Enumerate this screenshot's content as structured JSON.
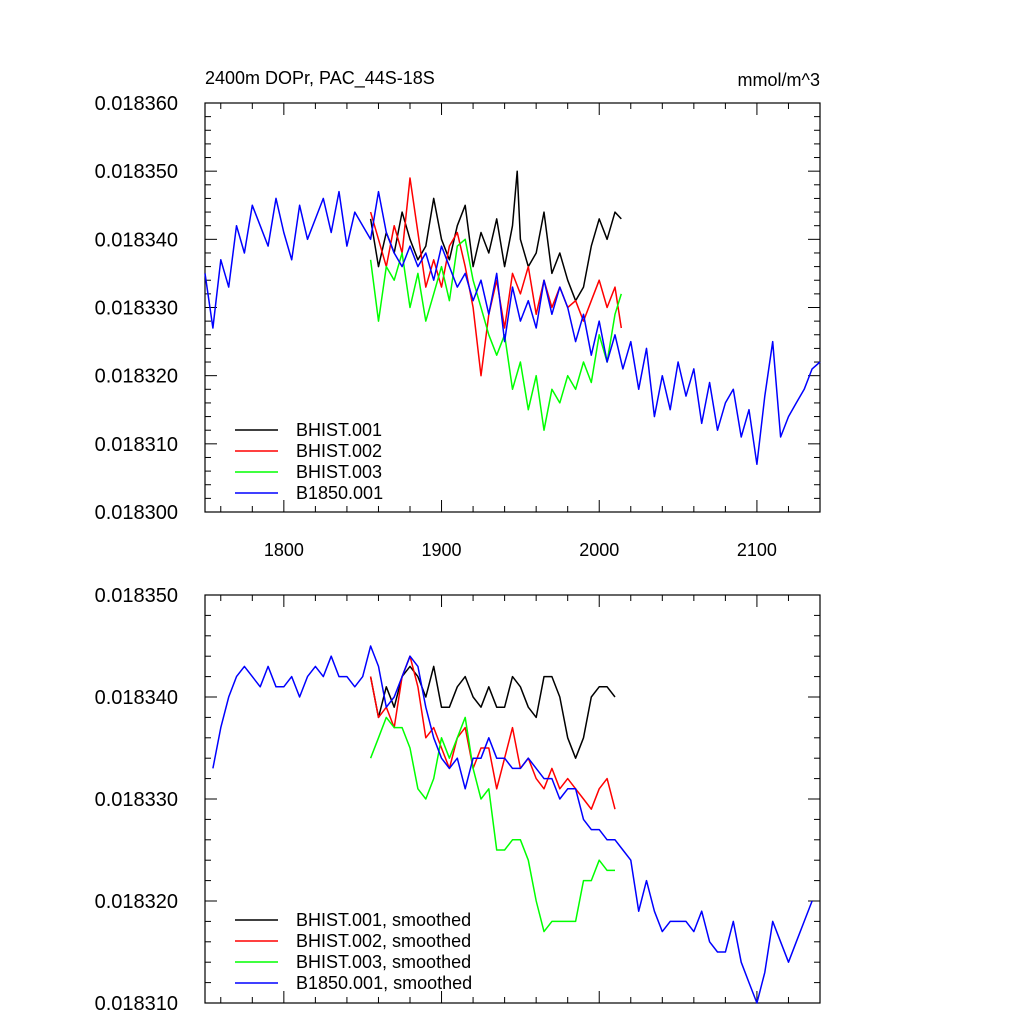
{
  "chart_data": [
    {
      "type": "line",
      "title": "2400m DOPr, PAC_44S-18S",
      "units": "mmol/m^3",
      "xlim": [
        1750,
        2140
      ],
      "ylim": [
        0.0183,
        0.01836
      ],
      "xticks": [
        1800,
        1900,
        2000,
        2100
      ],
      "xtick_labels": [
        "1800",
        "1900",
        "2000",
        "2100"
      ],
      "yticks": [
        0.0183,
        0.01831,
        0.01832,
        0.01833,
        0.01834,
        0.01835,
        0.01836
      ],
      "ytick_labels": [
        "0.018300",
        "0.018310",
        "0.018320",
        "0.018330",
        "0.018340",
        "0.018350",
        "0.018360"
      ],
      "legend_position": "bottom-left",
      "series": [
        {
          "name": "BHIST.001",
          "color": "#000000",
          "x": [
            1855,
            1860,
            1865,
            1870,
            1875,
            1880,
            1885,
            1890,
            1895,
            1900,
            1905,
            1910,
            1915,
            1920,
            1925,
            1930,
            1935,
            1940,
            1945,
            1948,
            1950,
            1955,
            1960,
            1965,
            1970,
            1975,
            1980,
            1985,
            1990,
            1995,
            2000,
            2005,
            2010,
            2014
          ],
          "y": [
            0.018343,
            0.018336,
            0.018341,
            0.018338,
            0.018344,
            0.01834,
            0.018337,
            0.018339,
            0.018346,
            0.01834,
            0.018337,
            0.018342,
            0.018345,
            0.018336,
            0.018341,
            0.018338,
            0.018343,
            0.018336,
            0.018342,
            0.01835,
            0.01834,
            0.018336,
            0.018338,
            0.018344,
            0.018335,
            0.018338,
            0.018334,
            0.018331,
            0.018333,
            0.018339,
            0.018343,
            0.01834,
            0.018344,
            0.018343
          ]
        },
        {
          "name": "BHIST.002",
          "color": "#ff0000",
          "x": [
            1855,
            1860,
            1865,
            1870,
            1875,
            1880,
            1885,
            1890,
            1895,
            1900,
            1905,
            1910,
            1915,
            1920,
            1925,
            1930,
            1935,
            1940,
            1945,
            1950,
            1955,
            1960,
            1965,
            1970,
            1975,
            1980,
            1985,
            1990,
            1995,
            2000,
            2005,
            2010,
            2014
          ],
          "y": [
            0.018344,
            0.01834,
            0.018336,
            0.018342,
            0.018338,
            0.018349,
            0.018341,
            0.018333,
            0.018337,
            0.018333,
            0.018339,
            0.018341,
            0.018336,
            0.01833,
            0.01832,
            0.018329,
            0.018334,
            0.018327,
            0.018335,
            0.018332,
            0.018336,
            0.018329,
            0.018334,
            0.01833,
            0.018333,
            0.01833,
            0.018331,
            0.018328,
            0.018331,
            0.018334,
            0.01833,
            0.018333,
            0.018327
          ]
        },
        {
          "name": "BHIST.003",
          "color": "#00ff00",
          "x": [
            1855,
            1860,
            1865,
            1870,
            1875,
            1880,
            1885,
            1890,
            1895,
            1900,
            1905,
            1910,
            1915,
            1920,
            1925,
            1930,
            1935,
            1940,
            1945,
            1950,
            1955,
            1960,
            1965,
            1970,
            1975,
            1980,
            1985,
            1990,
            1995,
            2000,
            2005,
            2010,
            2014
          ],
          "y": [
            0.018337,
            0.018328,
            0.018336,
            0.018334,
            0.018338,
            0.01833,
            0.018335,
            0.018328,
            0.018332,
            0.018336,
            0.018331,
            0.018339,
            0.01834,
            0.018334,
            0.01833,
            0.018326,
            0.018323,
            0.018326,
            0.018318,
            0.018322,
            0.018315,
            0.01832,
            0.018312,
            0.018318,
            0.018316,
            0.01832,
            0.018318,
            0.018322,
            0.018319,
            0.018326,
            0.018322,
            0.018329,
            0.018332
          ]
        },
        {
          "name": "B1850.001",
          "color": "#0000ff",
          "x": [
            1750,
            1755,
            1760,
            1765,
            1770,
            1775,
            1780,
            1785,
            1790,
            1795,
            1800,
            1805,
            1810,
            1815,
            1820,
            1825,
            1830,
            1835,
            1840,
            1845,
            1850,
            1855,
            1860,
            1865,
            1870,
            1875,
            1880,
            1885,
            1890,
            1895,
            1900,
            1905,
            1910,
            1915,
            1920,
            1925,
            1930,
            1935,
            1940,
            1945,
            1950,
            1955,
            1960,
            1965,
            1970,
            1975,
            1980,
            1985,
            1990,
            1995,
            2000,
            2005,
            2010,
            2015,
            2020,
            2025,
            2030,
            2035,
            2040,
            2045,
            2050,
            2055,
            2060,
            2065,
            2070,
            2075,
            2080,
            2085,
            2090,
            2095,
            2100,
            2105,
            2110,
            2115,
            2120,
            2125,
            2130,
            2135,
            2140
          ],
          "y": [
            0.018335,
            0.018327,
            0.018337,
            0.018333,
            0.018342,
            0.018338,
            0.018345,
            0.018342,
            0.018339,
            0.018346,
            0.018341,
            0.018337,
            0.018345,
            0.01834,
            0.018343,
            0.018346,
            0.018341,
            0.018347,
            0.018339,
            0.018344,
            0.018342,
            0.01834,
            0.018347,
            0.018341,
            0.018338,
            0.018336,
            0.018339,
            0.018336,
            0.018338,
            0.018334,
            0.018339,
            0.018336,
            0.018333,
            0.018335,
            0.018331,
            0.018334,
            0.018329,
            0.018335,
            0.018325,
            0.018333,
            0.018328,
            0.018331,
            0.018327,
            0.018334,
            0.018329,
            0.018333,
            0.01833,
            0.018325,
            0.018329,
            0.018323,
            0.018328,
            0.018322,
            0.018326,
            0.018321,
            0.018325,
            0.018318,
            0.018324,
            0.018314,
            0.01832,
            0.018315,
            0.018322,
            0.018317,
            0.018321,
            0.018313,
            0.018319,
            0.018312,
            0.018316,
            0.018318,
            0.018311,
            0.018315,
            0.018307,
            0.018317,
            0.018325,
            0.018311,
            0.018314,
            0.018316,
            0.018318,
            0.018321,
            0.018322
          ]
        }
      ]
    },
    {
      "type": "line",
      "xlim": [
        1750,
        2140
      ],
      "ylim": [
        0.01831,
        0.01835
      ],
      "xticks": [
        1800,
        1900,
        2000,
        2100
      ],
      "yticks": [
        0.01831,
        0.01832,
        0.01833,
        0.01834,
        0.01835
      ],
      "ytick_labels": [
        "0.018310",
        "0.018320",
        "0.018330",
        "0.018340",
        "0.018350"
      ],
      "legend_position": "bottom-left",
      "series": [
        {
          "name": "BHIST.001, smoothed",
          "color": "#000000",
          "x": [
            1855,
            1860,
            1865,
            1870,
            1875,
            1880,
            1885,
            1890,
            1895,
            1900,
            1905,
            1910,
            1915,
            1920,
            1925,
            1930,
            1935,
            1940,
            1945,
            1950,
            1955,
            1960,
            1965,
            1970,
            1975,
            1980,
            1985,
            1990,
            1995,
            2000,
            2005,
            2010
          ],
          "y": [
            0.018342,
            0.018338,
            0.018341,
            0.018339,
            0.018342,
            0.018343,
            0.018342,
            0.01834,
            0.018343,
            0.018339,
            0.018339,
            0.018341,
            0.018342,
            0.01834,
            0.018339,
            0.018341,
            0.018339,
            0.018339,
            0.018342,
            0.018341,
            0.018339,
            0.018338,
            0.018342,
            0.018342,
            0.01834,
            0.018336,
            0.018334,
            0.018336,
            0.01834,
            0.018341,
            0.018341,
            0.01834
          ]
        },
        {
          "name": "BHIST.002, smoothed",
          "color": "#ff0000",
          "x": [
            1855,
            1860,
            1865,
            1870,
            1875,
            1880,
            1885,
            1890,
            1895,
            1900,
            1905,
            1910,
            1915,
            1920,
            1925,
            1930,
            1935,
            1940,
            1945,
            1950,
            1955,
            1960,
            1965,
            1970,
            1975,
            1980,
            1985,
            1990,
            1995,
            2000,
            2005,
            2010
          ],
          "y": [
            0.018342,
            0.018338,
            0.018339,
            0.018337,
            0.018342,
            0.018344,
            0.018341,
            0.018336,
            0.018337,
            0.018335,
            0.018333,
            0.018336,
            0.018337,
            0.018333,
            0.018335,
            0.018335,
            0.018331,
            0.018334,
            0.018337,
            0.018333,
            0.018334,
            0.018332,
            0.018331,
            0.018333,
            0.018331,
            0.018332,
            0.018331,
            0.01833,
            0.018329,
            0.018331,
            0.018332,
            0.018329
          ]
        },
        {
          "name": "BHIST.003, smoothed",
          "color": "#00ff00",
          "x": [
            1855,
            1860,
            1865,
            1870,
            1875,
            1880,
            1885,
            1890,
            1895,
            1900,
            1905,
            1910,
            1915,
            1920,
            1925,
            1930,
            1935,
            1940,
            1945,
            1950,
            1955,
            1960,
            1965,
            1970,
            1975,
            1980,
            1985,
            1990,
            1995,
            2000,
            2005,
            2010
          ],
          "y": [
            0.018334,
            0.018336,
            0.018338,
            0.018337,
            0.018337,
            0.018335,
            0.018331,
            0.01833,
            0.018332,
            0.018336,
            0.018334,
            0.018336,
            0.018338,
            0.018333,
            0.01833,
            0.018331,
            0.018325,
            0.018325,
            0.018326,
            0.018326,
            0.018324,
            0.01832,
            0.018317,
            0.018318,
            0.018318,
            0.018318,
            0.018318,
            0.018322,
            0.018322,
            0.018324,
            0.018323,
            0.018323
          ]
        },
        {
          "name": "B1850.001, smoothed",
          "color": "#0000ff",
          "x": [
            1755,
            1760,
            1765,
            1770,
            1775,
            1780,
            1785,
            1790,
            1795,
            1800,
            1805,
            1810,
            1815,
            1820,
            1825,
            1830,
            1835,
            1840,
            1845,
            1850,
            1855,
            1860,
            1865,
            1870,
            1875,
            1880,
            1885,
            1890,
            1895,
            1900,
            1905,
            1910,
            1915,
            1920,
            1925,
            1930,
            1935,
            1940,
            1945,
            1950,
            1955,
            1960,
            1965,
            1970,
            1975,
            1980,
            1985,
            1990,
            1995,
            2000,
            2005,
            2010,
            2015,
            2020,
            2025,
            2030,
            2035,
            2040,
            2045,
            2050,
            2055,
            2060,
            2065,
            2070,
            2075,
            2080,
            2085,
            2090,
            2095,
            2100,
            2105,
            2110,
            2115,
            2120,
            2125,
            2130,
            2135
          ],
          "y": [
            0.018333,
            0.018337,
            0.01834,
            0.018342,
            0.018343,
            0.018342,
            0.018341,
            0.018343,
            0.018341,
            0.018341,
            0.018342,
            0.01834,
            0.018342,
            0.018343,
            0.018342,
            0.018344,
            0.018342,
            0.018342,
            0.018341,
            0.018342,
            0.018345,
            0.018343,
            0.018339,
            0.01834,
            0.018342,
            0.018344,
            0.018343,
            0.018339,
            0.018336,
            0.018334,
            0.018333,
            0.018334,
            0.018331,
            0.018334,
            0.018334,
            0.018336,
            0.018334,
            0.018334,
            0.018333,
            0.018333,
            0.018334,
            0.018333,
            0.018332,
            0.018332,
            0.01833,
            0.018331,
            0.018331,
            0.018328,
            0.018327,
            0.018327,
            0.018326,
            0.018326,
            0.018325,
            0.018324,
            0.018319,
            0.018322,
            0.018319,
            0.018317,
            0.018318,
            0.018318,
            0.018318,
            0.018317,
            0.018319,
            0.018316,
            0.018315,
            0.018315,
            0.018318,
            0.018314,
            0.018312,
            0.01831,
            0.018313,
            0.018318,
            0.018316,
            0.018314,
            0.018316,
            0.018318,
            0.01832
          ]
        }
      ]
    }
  ]
}
